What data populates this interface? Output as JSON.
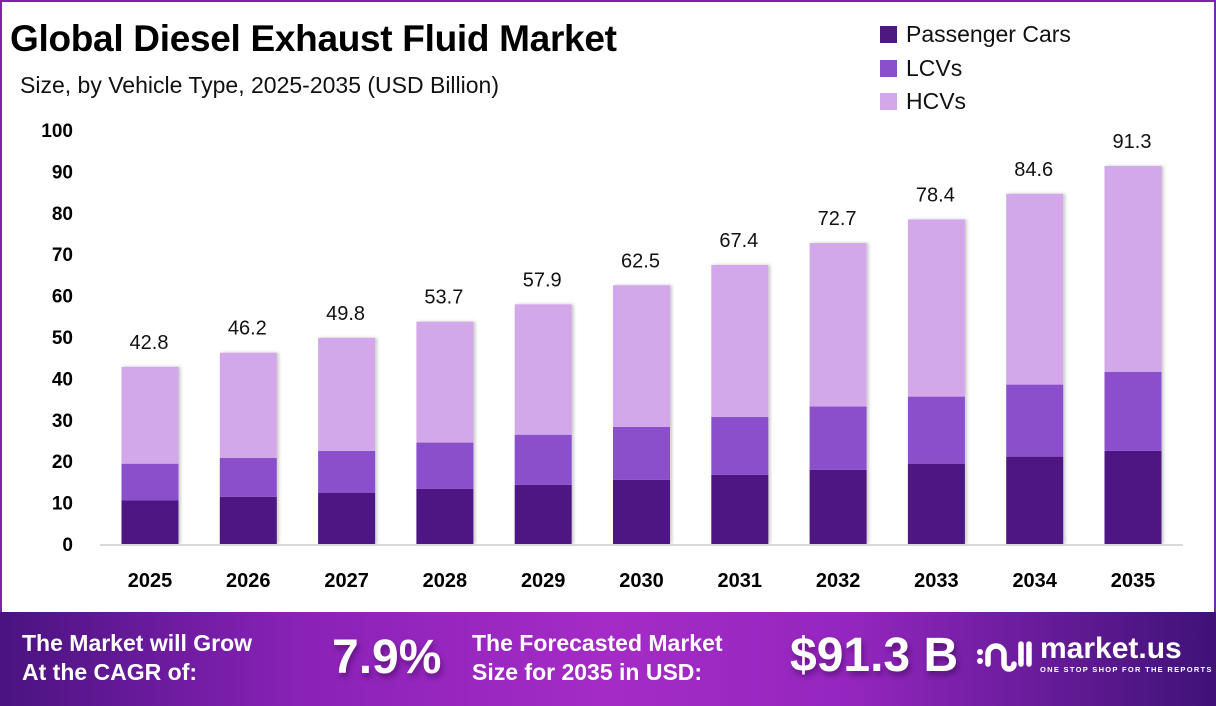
{
  "header": {
    "title": "Global Diesel Exhaust Fluid Market",
    "subtitle": "Size, by Vehicle Type, 2025-2035 (USD Billion)"
  },
  "colors": {
    "frame": "#7a26a8",
    "passenger_cars": "#4e1883",
    "lcvs": "#8b4fcb",
    "hcvs": "#d3a8ea",
    "axis": "#d9d9d9"
  },
  "chart_data": {
    "type": "bar",
    "stacked": true,
    "title": "Global Diesel Exhaust Fluid Market",
    "subtitle": "Size, by Vehicle Type, 2025-2035 (USD Billion)",
    "xlabel": "",
    "ylabel": "",
    "categories": [
      "2025",
      "2026",
      "2027",
      "2028",
      "2029",
      "2030",
      "2031",
      "2032",
      "2033",
      "2034",
      "2035"
    ],
    "series": [
      {
        "name": "Passenger Cars",
        "color": "#4e1883",
        "values": [
          10.5,
          11.4,
          12.4,
          13.3,
          14.3,
          15.5,
          16.7,
          17.9,
          19.4,
          21.1,
          22.5
        ]
      },
      {
        "name": "LCVs",
        "color": "#8b4fcb",
        "values": [
          8.9,
          9.4,
          10.1,
          11.2,
          12.1,
          12.8,
          14.0,
          15.3,
          16.2,
          17.4,
          19.1
        ]
      },
      {
        "name": "HCVs",
        "color": "#d3a8ea",
        "values": [
          23.4,
          25.4,
          27.3,
          29.2,
          31.5,
          34.2,
          36.7,
          39.5,
          42.8,
          46.1,
          49.7
        ]
      }
    ],
    "totals": [
      42.8,
      46.2,
      49.8,
      53.7,
      57.9,
      62.5,
      67.4,
      72.7,
      78.4,
      84.6,
      91.3
    ],
    "total_labels": [
      "42.8",
      "46.2",
      "49.8",
      "53.7",
      "57.9",
      "62.5",
      "67.4",
      "72.7",
      "78.4",
      "84.6",
      "91.3"
    ],
    "ylim": [
      0,
      100
    ],
    "yticks": [
      0,
      10,
      20,
      30,
      40,
      50,
      60,
      70,
      80,
      90,
      100
    ],
    "ytick_labels": [
      "0",
      "10",
      "20",
      "30",
      "40",
      "50",
      "60",
      "70",
      "80",
      "90",
      "100"
    ],
    "grid": false,
    "legend": {
      "position": "top-right",
      "entries": [
        "Passenger Cars",
        "LCVs",
        "HCVs"
      ]
    }
  },
  "banner": {
    "cagr_text_line1": "The Market will Grow",
    "cagr_text_line2": "At the CAGR of:",
    "cagr_value": "7.9%",
    "forecast_text_line1": "The Forecasted Market",
    "forecast_text_line2": "Size for 2035 in USD:",
    "forecast_value": "$91.3 B",
    "logo_name": "market.us",
    "logo_tagline": "ONE STOP SHOP FOR THE REPORTS"
  }
}
